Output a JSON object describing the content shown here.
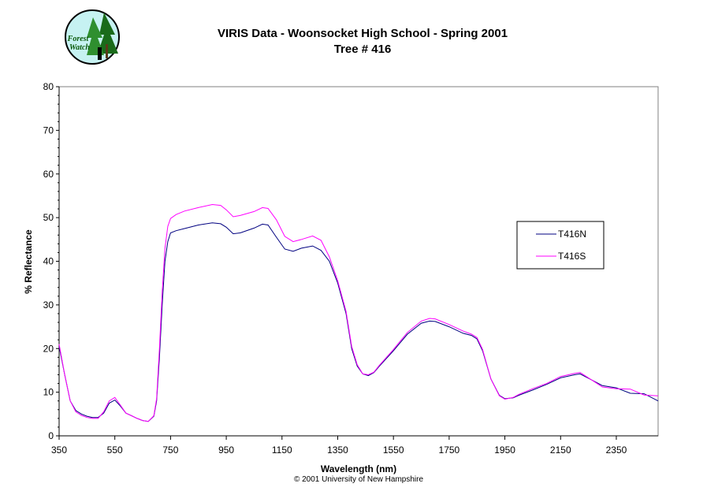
{
  "logo": {
    "line1": "Forest",
    "line2": "Watch"
  },
  "copyright": "© 2001 University of New Hampshire",
  "chart_data": {
    "type": "line",
    "title": "VIRIS Data - Woonsocket High School - Spring 2001",
    "subtitle": "Tree # 416",
    "xlabel": "Wavelength (nm)",
    "ylabel": "% Reflectance",
    "xlim": [
      350,
      2500
    ],
    "ylim": [
      0,
      80
    ],
    "xticks": [
      350,
      550,
      750,
      950,
      1150,
      1350,
      1550,
      1750,
      1950,
      2150,
      2350
    ],
    "yticks": [
      0,
      10,
      20,
      30,
      40,
      50,
      60,
      70,
      80
    ],
    "grid": false,
    "legend_position": "right",
    "series": [
      {
        "name": "T416N",
        "color": "#000080",
        "x": [
          350,
          370,
          390,
          410,
          430,
          450,
          470,
          490,
          510,
          530,
          550,
          570,
          590,
          610,
          630,
          650,
          670,
          690,
          700,
          710,
          720,
          730,
          740,
          750,
          770,
          800,
          850,
          900,
          930,
          950,
          975,
          1000,
          1050,
          1080,
          1100,
          1130,
          1160,
          1190,
          1220,
          1260,
          1290,
          1320,
          1350,
          1380,
          1400,
          1420,
          1440,
          1460,
          1480,
          1500,
          1550,
          1600,
          1650,
          1680,
          1700,
          1750,
          1800,
          1830,
          1850,
          1870,
          1900,
          1930,
          1950,
          1980,
          2000,
          2050,
          2100,
          2150,
          2200,
          2220,
          2250,
          2300,
          2350,
          2400,
          2450,
          2500
        ],
        "y": [
          20.5,
          14,
          8,
          5.8,
          5,
          4.5,
          4.2,
          4.2,
          5.2,
          7.5,
          8.2,
          6.8,
          5.2,
          4.6,
          4,
          3.5,
          3.3,
          4.5,
          8,
          18,
          30,
          40,
          44.5,
          46.5,
          47,
          47.5,
          48.3,
          48.8,
          48.6,
          47.8,
          46.3,
          46.5,
          47.6,
          48.5,
          48.3,
          45.5,
          42.8,
          42.3,
          43,
          43.5,
          42.5,
          40,
          35,
          28,
          20,
          16,
          14.2,
          13.8,
          14.5,
          16,
          19.5,
          23.3,
          25.8,
          26.3,
          26.2,
          25,
          23.5,
          23,
          22.2,
          19.5,
          13,
          9.3,
          8.5,
          8.7,
          9.3,
          10.5,
          11.8,
          13.3,
          14,
          14.2,
          13.2,
          11.5,
          10.5,
          10,
          9.4,
          8.5
        ]
      },
      {
        "name": "T416S",
        "color": "#ff00ff",
        "x": [
          350,
          370,
          390,
          410,
          430,
          450,
          470,
          490,
          510,
          530,
          550,
          570,
          590,
          610,
          630,
          650,
          670,
          690,
          700,
          710,
          720,
          730,
          740,
          750,
          770,
          800,
          850,
          900,
          930,
          950,
          975,
          1000,
          1050,
          1080,
          1100,
          1130,
          1160,
          1190,
          1220,
          1260,
          1290,
          1320,
          1350,
          1380,
          1400,
          1420,
          1440,
          1460,
          1480,
          1500,
          1550,
          1600,
          1650,
          1680,
          1700,
          1750,
          1800,
          1830,
          1850,
          1870,
          1900,
          1930,
          1950,
          1980,
          2000,
          2050,
          2100,
          2150,
          2200,
          2220,
          2250,
          2300,
          2350,
          2400,
          2450,
          2500
        ],
        "y": [
          21,
          14,
          8,
          5.5,
          4.7,
          4.2,
          4,
          4,
          5.5,
          8,
          8.8,
          7,
          5.2,
          4.6,
          4,
          3.5,
          3.3,
          4.6,
          8.5,
          20,
          33,
          43,
          48,
          49.8,
          50.7,
          51.5,
          52.3,
          53,
          52.8,
          51.8,
          50.2,
          50.5,
          51.4,
          52.3,
          52.1,
          49.5,
          45.7,
          44.5,
          45,
          45.8,
          44.8,
          41,
          35.5,
          28.5,
          20.5,
          16.3,
          14.2,
          14,
          14.6,
          16.2,
          19.8,
          23.7,
          26.3,
          26.9,
          26.8,
          25.5,
          24,
          23.3,
          22.5,
          19.8,
          13,
          9.2,
          8.4,
          8.8,
          9.5,
          10.8,
          12,
          13.6,
          14.3,
          14.5,
          13.3,
          11.7,
          10.8,
          10.2,
          9.6,
          8.9
        ]
      }
    ]
  }
}
